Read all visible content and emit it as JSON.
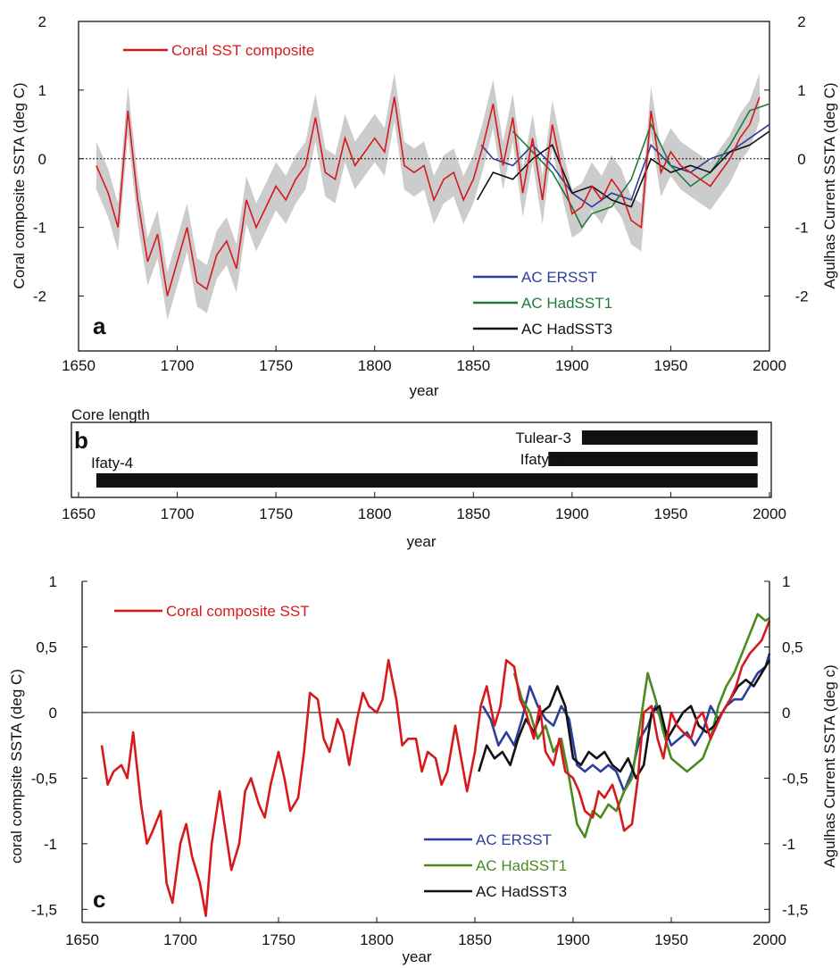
{
  "chart_data": [
    {
      "panel": "a",
      "type": "line",
      "xlabel": "year",
      "ylabel": "Coral composite SSTA  (deg C)",
      "ylabel_right": "Agulhas Current SSTA  (deg C)",
      "xlim": [
        1650,
        2000
      ],
      "ylim": [
        -2.8,
        2
      ],
      "x_ticks": [
        "1650",
        "1700",
        "1750",
        "1800",
        "1850",
        "1900",
        "1950",
        "2000"
      ],
      "y_ticks_left": [
        "2",
        "1",
        "0",
        "-1",
        "-2"
      ],
      "y_ticks_right": [
        "2",
        "1",
        "0",
        "-1",
        "-2"
      ],
      "zero_line": "dotted",
      "shading": "grey uncertainty band around coral composite",
      "legend": [
        {
          "label": "Coral SST composite",
          "color": "#d7191c"
        },
        {
          "label": "AC ERSST",
          "color": "#2c3e9c"
        },
        {
          "label": "AC HadSST1",
          "color": "#1f7a3a"
        },
        {
          "label": "AC HadSST3",
          "color": "#111111"
        }
      ],
      "series": [
        {
          "name": "Coral SST composite",
          "color": "#d7191c",
          "x": [
            1659,
            1665,
            1670,
            1675,
            1680,
            1685,
            1690,
            1695,
            1700,
            1705,
            1710,
            1715,
            1720,
            1725,
            1730,
            1735,
            1740,
            1745,
            1750,
            1755,
            1760,
            1765,
            1770,
            1775,
            1780,
            1785,
            1790,
            1795,
            1800,
            1805,
            1810,
            1815,
            1820,
            1825,
            1830,
            1835,
            1840,
            1845,
            1850,
            1855,
            1860,
            1865,
            1870,
            1875,
            1880,
            1885,
            1890,
            1895,
            1900,
            1905,
            1910,
            1915,
            1920,
            1925,
            1930,
            1935,
            1940,
            1945,
            1950,
            1955,
            1960,
            1965,
            1970,
            1975,
            1980,
            1985,
            1990,
            1995
          ],
          "y": [
            -0.1,
            -0.5,
            -1.0,
            0.7,
            -0.6,
            -1.5,
            -1.1,
            -2.0,
            -1.5,
            -1.0,
            -1.8,
            -1.9,
            -1.4,
            -1.2,
            -1.6,
            -0.6,
            -1.0,
            -0.7,
            -0.4,
            -0.6,
            -0.3,
            -0.1,
            0.6,
            -0.2,
            -0.3,
            0.3,
            -0.1,
            0.1,
            0.3,
            0.1,
            0.9,
            -0.1,
            -0.2,
            -0.1,
            -0.6,
            -0.3,
            -0.2,
            -0.6,
            -0.3,
            0.2,
            0.8,
            -0.1,
            0.6,
            -0.5,
            0.3,
            -0.6,
            0.5,
            -0.2,
            -0.8,
            -0.7,
            -0.4,
            -0.6,
            -0.3,
            -0.5,
            -0.9,
            -1.0,
            0.7,
            -0.2,
            0.1,
            -0.1,
            -0.2,
            -0.3,
            -0.4,
            -0.2,
            0.0,
            0.3,
            0.5,
            0.9
          ]
        },
        {
          "name": "AC ERSST",
          "color": "#2c3e9c",
          "x": [
            1854,
            1860,
            1870,
            1880,
            1890,
            1900,
            1910,
            1920,
            1930,
            1940,
            1950,
            1960,
            1970,
            1980,
            1990,
            2000
          ],
          "y": [
            0.2,
            0.0,
            -0.1,
            0.2,
            -0.1,
            -0.5,
            -0.7,
            -0.5,
            -0.6,
            0.2,
            -0.1,
            -0.2,
            0.0,
            0.1,
            0.3,
            0.5
          ]
        },
        {
          "name": "AC HadSST1",
          "color": "#1f7a3a",
          "x": [
            1870,
            1880,
            1890,
            1900,
            1905,
            1910,
            1920,
            1930,
            1940,
            1950,
            1960,
            1970,
            1980,
            1990,
            2000
          ],
          "y": [
            0.4,
            0.1,
            -0.2,
            -0.7,
            -1.0,
            -0.8,
            -0.7,
            -0.3,
            0.5,
            -0.1,
            -0.4,
            -0.2,
            0.2,
            0.7,
            0.8
          ]
        },
        {
          "name": "AC HadSST3",
          "color": "#111111",
          "x": [
            1852,
            1860,
            1870,
            1880,
            1890,
            1900,
            1910,
            1920,
            1930,
            1940,
            1950,
            1960,
            1970,
            1980,
            1990,
            2000
          ],
          "y": [
            -0.6,
            -0.2,
            -0.3,
            0.0,
            0.2,
            -0.5,
            -0.4,
            -0.6,
            -0.7,
            0.0,
            -0.2,
            -0.1,
            -0.2,
            0.1,
            0.2,
            0.4
          ]
        }
      ]
    },
    {
      "panel": "b",
      "type": "bar",
      "title": "Core length",
      "xlabel": "year",
      "xlim": [
        1650,
        2000
      ],
      "x_ticks": [
        "1650",
        "1700",
        "1750",
        "1800",
        "1850",
        "1900",
        "1950",
        "2000"
      ],
      "cores": [
        {
          "name": "Tulear-3",
          "start": 1905,
          "end": 1994
        },
        {
          "name": "Ifaty-1",
          "start": 1888,
          "end": 1994
        },
        {
          "name": "Ifaty-4",
          "start": 1659,
          "end": 1994
        }
      ]
    },
    {
      "panel": "c",
      "type": "line",
      "xlabel": "year",
      "ylabel": "coral compsite SSTA  (deg C)",
      "ylabel_right": "Agulhas Current SSTA  (deg c)",
      "xlim": [
        1650,
        2000
      ],
      "ylim": [
        -1.6,
        1
      ],
      "x_ticks": [
        "1650",
        "1700",
        "1750",
        "1800",
        "1850",
        "1900",
        "1950",
        "2000"
      ],
      "y_ticks_left": [
        "1",
        "0,5",
        "0",
        "-0,5",
        "-1",
        "-1,5"
      ],
      "y_ticks_right": [
        "1",
        "0,5",
        "0",
        "-0,5",
        "-1",
        "-1,5"
      ],
      "zero_line": "solid",
      "legend": [
        {
          "label": "Coral composite SST",
          "color": "#d7191c"
        },
        {
          "label": "AC ERSST",
          "color": "#2c3e9c"
        },
        {
          "label": "AC HadSST1",
          "color": "#4a8a1f"
        },
        {
          "label": "AC HadSST3",
          "color": "#111111"
        }
      ],
      "series": [
        {
          "name": "Coral composite SST",
          "color": "#d7191c",
          "x": [
            1660,
            1663,
            1666,
            1670,
            1673,
            1676,
            1680,
            1683,
            1686,
            1690,
            1693,
            1696,
            1700,
            1703,
            1706,
            1710,
            1713,
            1716,
            1720,
            1723,
            1726,
            1730,
            1733,
            1736,
            1740,
            1743,
            1746,
            1750,
            1753,
            1756,
            1760,
            1763,
            1766,
            1770,
            1773,
            1776,
            1780,
            1783,
            1786,
            1790,
            1793,
            1796,
            1800,
            1803,
            1806,
            1810,
            1813,
            1816,
            1820,
            1823,
            1826,
            1830,
            1833,
            1836,
            1840,
            1843,
            1846,
            1850,
            1853,
            1856,
            1860,
            1863,
            1866,
            1870,
            1873,
            1876,
            1880,
            1883,
            1886,
            1890,
            1893,
            1896,
            1900,
            1903,
            1906,
            1910,
            1913,
            1916,
            1920,
            1923,
            1926,
            1930,
            1933,
            1936,
            1940,
            1943,
            1946,
            1950,
            1953,
            1956,
            1960,
            1963,
            1966,
            1970,
            1973,
            1976,
            1980,
            1983,
            1986,
            1990,
            1993,
            1996,
            2000
          ],
          "y": [
            -0.25,
            -0.55,
            -0.45,
            -0.4,
            -0.5,
            -0.15,
            -0.7,
            -1.0,
            -0.9,
            -0.75,
            -1.3,
            -1.45,
            -1.0,
            -0.85,
            -1.1,
            -1.3,
            -1.55,
            -1.0,
            -0.6,
            -0.9,
            -1.2,
            -1.0,
            -0.6,
            -0.5,
            -0.7,
            -0.8,
            -0.55,
            -0.3,
            -0.5,
            -0.75,
            -0.65,
            -0.3,
            0.15,
            0.1,
            -0.2,
            -0.3,
            -0.05,
            -0.15,
            -0.4,
            -0.05,
            0.15,
            0.05,
            0.0,
            0.1,
            0.4,
            0.1,
            -0.25,
            -0.2,
            -0.2,
            -0.45,
            -0.3,
            -0.35,
            -0.55,
            -0.45,
            -0.1,
            -0.35,
            -0.6,
            -0.3,
            0.05,
            0.2,
            -0.1,
            0.05,
            0.4,
            0.35,
            0.1,
            0.0,
            -0.2,
            0.05,
            -0.3,
            -0.4,
            -0.2,
            -0.45,
            -0.5,
            -0.6,
            -0.75,
            -0.8,
            -0.6,
            -0.65,
            -0.55,
            -0.7,
            -0.9,
            -0.85,
            -0.5,
            0.0,
            0.05,
            -0.2,
            -0.35,
            0.0,
            -0.1,
            -0.15,
            -0.2,
            -0.05,
            0.0,
            -0.2,
            -0.1,
            0.0,
            0.1,
            0.2,
            0.35,
            0.45,
            0.5,
            0.55,
            0.7
          ]
        },
        {
          "name": "AC ERSST",
          "color": "#2c3e9c",
          "x": [
            1854,
            1858,
            1862,
            1866,
            1870,
            1874,
            1878,
            1882,
            1886,
            1890,
            1894,
            1898,
            1902,
            1906,
            1910,
            1914,
            1918,
            1922,
            1926,
            1930,
            1934,
            1938,
            1942,
            1946,
            1950,
            1954,
            1958,
            1962,
            1966,
            1970,
            1974,
            1978,
            1982,
            1986,
            1990,
            1994,
            1998,
            2000
          ],
          "y": [
            0.05,
            -0.05,
            -0.25,
            -0.15,
            -0.25,
            -0.05,
            0.2,
            0.05,
            -0.05,
            -0.1,
            0.05,
            -0.05,
            -0.4,
            -0.45,
            -0.4,
            -0.45,
            -0.4,
            -0.45,
            -0.6,
            -0.45,
            -0.2,
            -0.1,
            0.05,
            -0.1,
            -0.25,
            -0.2,
            -0.15,
            -0.25,
            -0.15,
            0.05,
            -0.05,
            0.05,
            0.1,
            0.1,
            0.2,
            0.3,
            0.35,
            0.45
          ]
        },
        {
          "name": "AC HadSST1",
          "color": "#4a8a1f",
          "x": [
            1870,
            1874,
            1878,
            1882,
            1886,
            1890,
            1894,
            1898,
            1902,
            1906,
            1910,
            1914,
            1918,
            1922,
            1926,
            1930,
            1934,
            1938,
            1942,
            1946,
            1950,
            1954,
            1958,
            1962,
            1966,
            1970,
            1974,
            1978,
            1982,
            1986,
            1990,
            1994,
            1998,
            2000
          ],
          "y": [
            0.3,
            0.1,
            0.0,
            -0.2,
            -0.1,
            -0.3,
            -0.2,
            -0.5,
            -0.85,
            -0.95,
            -0.75,
            -0.8,
            -0.7,
            -0.75,
            -0.6,
            -0.5,
            -0.1,
            0.3,
            0.1,
            -0.15,
            -0.35,
            -0.4,
            -0.45,
            -0.4,
            -0.35,
            -0.2,
            0.05,
            0.2,
            0.3,
            0.45,
            0.6,
            0.75,
            0.7,
            0.72
          ]
        },
        {
          "name": "AC HadSST3",
          "color": "#111111",
          "x": [
            1852,
            1856,
            1860,
            1864,
            1868,
            1872,
            1876,
            1880,
            1884,
            1888,
            1892,
            1896,
            1900,
            1904,
            1908,
            1912,
            1916,
            1920,
            1924,
            1928,
            1932,
            1936,
            1940,
            1944,
            1948,
            1952,
            1956,
            1960,
            1964,
            1968,
            1972,
            1976,
            1980,
            1984,
            1988,
            1992,
            1996,
            2000
          ],
          "y": [
            -0.45,
            -0.25,
            -0.35,
            -0.3,
            -0.4,
            -0.2,
            -0.05,
            -0.15,
            0.0,
            0.05,
            0.2,
            0.05,
            -0.35,
            -0.4,
            -0.3,
            -0.35,
            -0.3,
            -0.4,
            -0.45,
            -0.35,
            -0.5,
            -0.4,
            0.0,
            0.05,
            -0.2,
            -0.1,
            0.0,
            0.05,
            -0.1,
            -0.15,
            -0.1,
            0.0,
            0.1,
            0.2,
            0.25,
            0.2,
            0.3,
            0.4
          ]
        }
      ]
    }
  ],
  "panel_letters": {
    "a": "a",
    "b": "b",
    "c": "c"
  }
}
